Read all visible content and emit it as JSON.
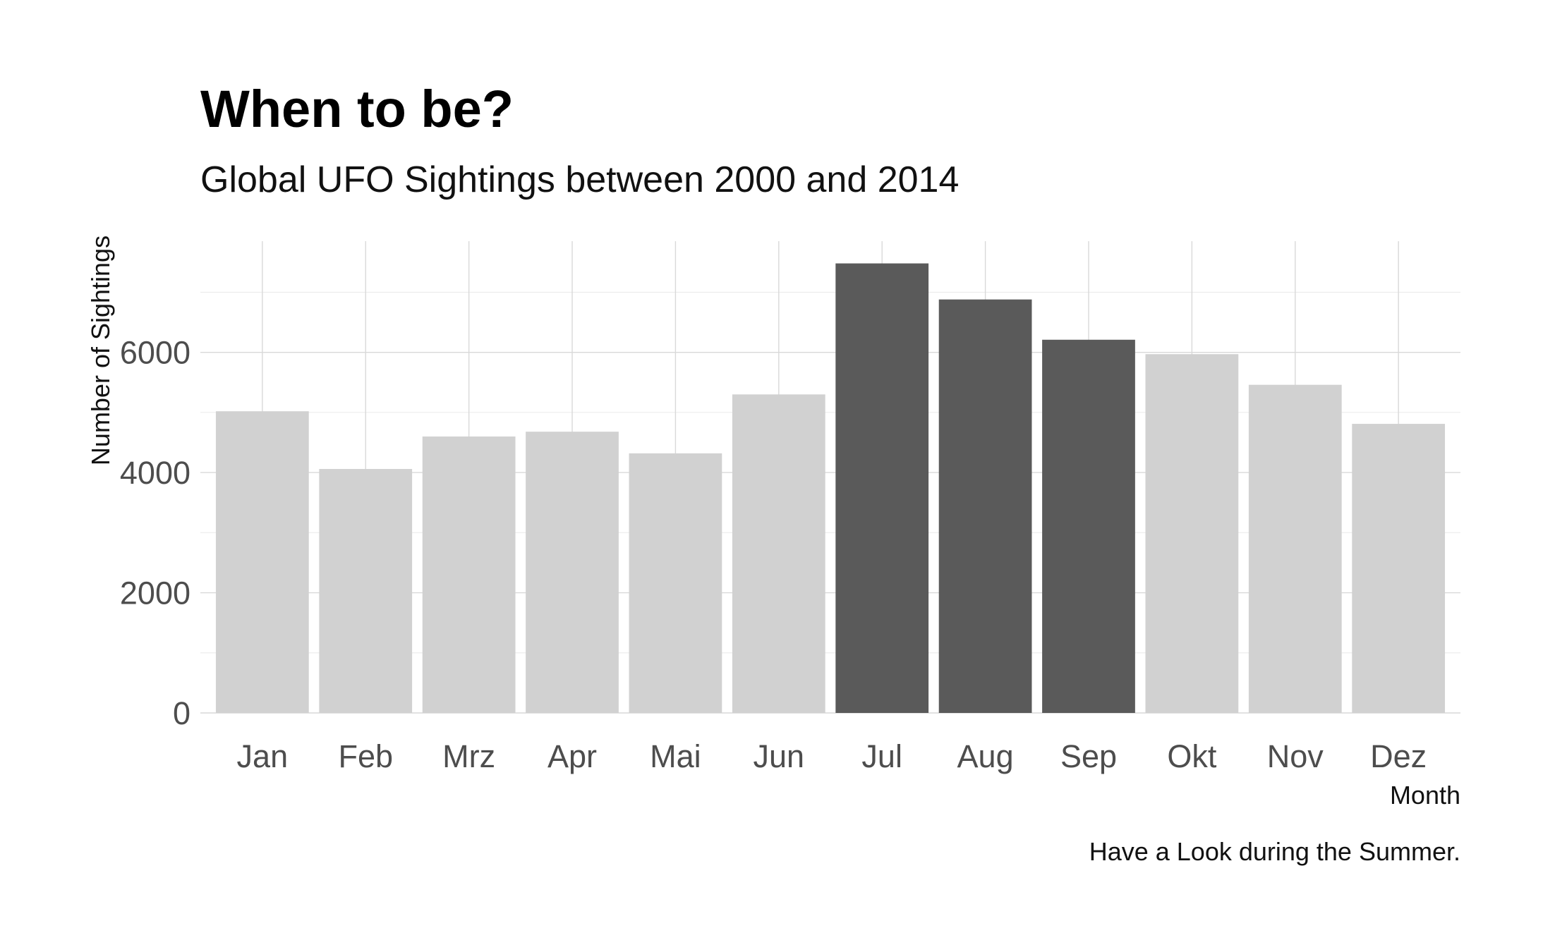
{
  "chart_data": {
    "type": "bar",
    "title": "When to be?",
    "subtitle": "Global UFO Sightings between 2000 and 2014",
    "xlabel": "Month",
    "ylabel": "Number of Sightings",
    "caption": "Have a Look during the Summer.",
    "categories": [
      "Jan",
      "Feb",
      "Mrz",
      "Apr",
      "Mai",
      "Jun",
      "Jul",
      "Aug",
      "Sep",
      "Okt",
      "Nov",
      "Dez"
    ],
    "values": [
      5020,
      4060,
      4600,
      4680,
      4320,
      5300,
      7480,
      6880,
      6210,
      5970,
      5460,
      4810
    ],
    "highlighted": [
      "Jul",
      "Aug",
      "Sep"
    ],
    "ylim": [
      0,
      7850
    ],
    "yticks": [
      0,
      2000,
      4000,
      6000
    ],
    "grid": true,
    "legend": "none",
    "colors": {
      "default": "#d1d1d1",
      "highlight": "#5a5a5a"
    }
  }
}
